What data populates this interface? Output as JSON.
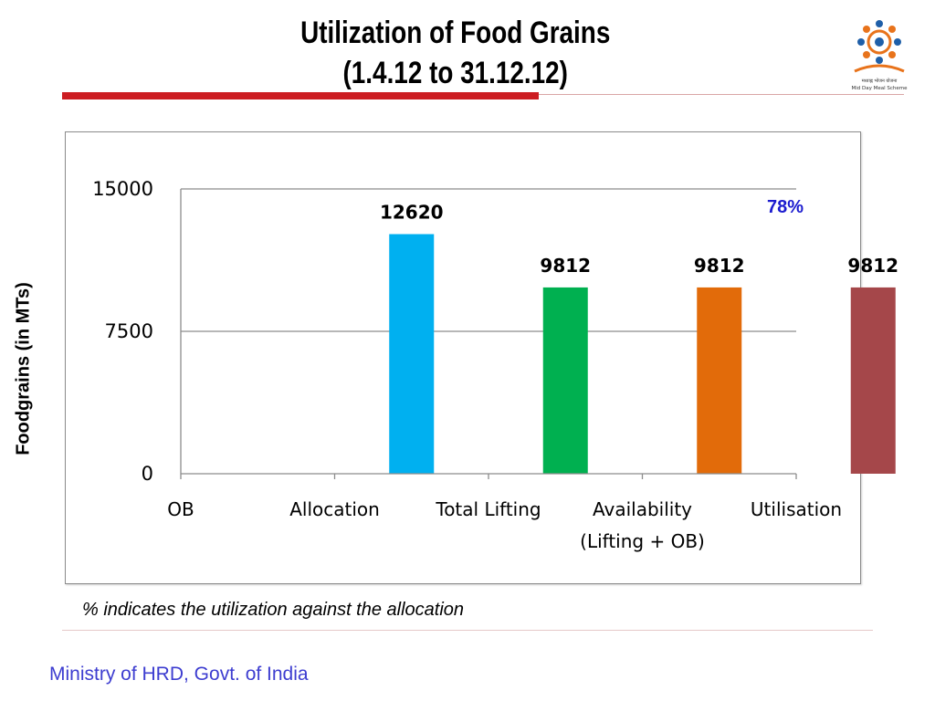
{
  "slide": {
    "title_line1": "Utilization of Food Grains",
    "title_line2": "(1.4.12 to 31.12.12)",
    "footnote": "% indicates the utilization against the allocation",
    "footer": "Ministry of HRD, Govt. of India",
    "accent_red": "#cc1d22",
    "logo_text": "मध्याह्न भोजन योजना",
    "logo_subtext": "Mid Day Meal Scheme"
  },
  "chart_data": {
    "type": "bar",
    "categories": [
      "OB",
      "Allocation",
      "Total Lifting",
      "Availability\n(Lifting + OB)",
      "Utilisation"
    ],
    "values": [
      0,
      12620,
      9812,
      9812,
      9812
    ],
    "value_labels": [
      "",
      "12620",
      "9812",
      "9812",
      "9812"
    ],
    "colors": [
      "#00b0f0",
      "#00b0f0",
      "#00b050",
      "#e26b0a",
      "#a5474a"
    ],
    "ylabel": "Foodgrains (in MTs)",
    "ylim": [
      0,
      15000
    ],
    "yticks": [
      0,
      7500,
      15000
    ],
    "annotation": "78%",
    "grid": true
  }
}
